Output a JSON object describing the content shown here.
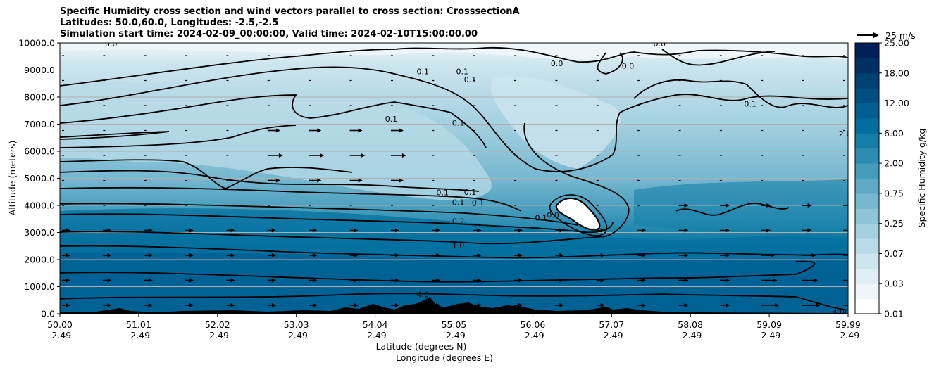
{
  "title": {
    "line1": "Specific Humidity cross section and wind vectors parallel to cross section: CrosssectionA",
    "line2": "Latitudes: 50.0,60.0, Longitudes: -2.5,-2.5",
    "line3": "Simulation start time: 2024-02-09_00:00:00, Valid time: 2024-02-10T15:00:00.00"
  },
  "chart_data": {
    "type": "heatmap",
    "xlabel": "Latitude (degrees N)",
    "xlabel2": "Longitude (degrees E)",
    "ylabel": "Altitude (meters)",
    "ylim": [
      0,
      10000
    ],
    "y_ticks": [
      "0.0",
      "1000.0",
      "2000.0",
      "3000.0",
      "4000.0",
      "5000.0",
      "6000.0",
      "7000.0",
      "8000.0",
      "9000.0",
      "10000.0"
    ],
    "x_ticks_lat": [
      "50.00",
      "51.01",
      "52.02",
      "53.03",
      "54.04",
      "55.05",
      "56.06",
      "57.07",
      "58.08",
      "59.09",
      "59.99"
    ],
    "x_ticks_lon": [
      "-2.49",
      "-2.49",
      "-2.49",
      "-2.49",
      "-2.49",
      "-2.49",
      "-2.49",
      "-2.49",
      "-2.49",
      "-2.49",
      "-2.49"
    ],
    "xlim": [
      50.0,
      59.99
    ],
    "grid": "horizontal",
    "colorbar": {
      "label": "Specific Humidity g/kg",
      "ticks": [
        "0.01",
        "0.03",
        "0.07",
        "0.25",
        "0.75",
        "2.00",
        "6.00",
        "12.00",
        "18.00",
        "25.00"
      ],
      "colors": [
        "#ffffff",
        "#eef6f9",
        "#deeef4",
        "#cde5ee",
        "#b9dbe7",
        "#a4d0e0",
        "#8dc4d8",
        "#76b8d0",
        "#5eaac6",
        "#469cbc",
        "#2c8db2",
        "#137ea8",
        "#006e9e",
        "#005f91",
        "#004f82",
        "#003f72",
        "#002f63",
        "#00205a"
      ]
    },
    "quiver_key": "25 m/s",
    "contour_labels": [
      {
        "text": "0.0",
        "lat": 50.65,
        "alt": 9980
      },
      {
        "text": "0.0",
        "lat": 57.6,
        "alt": 9980
      },
      {
        "text": "0.0",
        "lat": 56.3,
        "alt": 9250
      },
      {
        "text": "0.0",
        "lat": 57.2,
        "alt": 9150
      },
      {
        "text": "0.1",
        "lat": 54.6,
        "alt": 8950
      },
      {
        "text": "0.1",
        "lat": 55.1,
        "alt": 8950
      },
      {
        "text": "0.1",
        "lat": 55.2,
        "alt": 8650
      },
      {
        "text": "0.1",
        "lat": 54.2,
        "alt": 7200
      },
      {
        "text": "0.1",
        "lat": 55.05,
        "alt": 7050
      },
      {
        "text": "0.1",
        "lat": 58.75,
        "alt": 7750
      },
      {
        "text": "2.0",
        "lat": 59.95,
        "alt": 6650
      },
      {
        "text": "0.1",
        "lat": 54.85,
        "alt": 4480
      },
      {
        "text": "0.1",
        "lat": 55.2,
        "alt": 4500
      },
      {
        "text": "0.1",
        "lat": 55.05,
        "alt": 4120
      },
      {
        "text": "0.1",
        "lat": 55.3,
        "alt": 4100
      },
      {
        "text": "0.0",
        "lat": 56.25,
        "alt": 3650
      },
      {
        "text": "0.1",
        "lat": 56.1,
        "alt": 3550
      },
      {
        "text": "0.2",
        "lat": 55.05,
        "alt": 3420
      },
      {
        "text": "1.0",
        "lat": 55.05,
        "alt": 2520
      },
      {
        "text": "4.0",
        "lat": 54.6,
        "alt": 720
      },
      {
        "text": "4.00",
        "lat": 59.9,
        "alt": 70
      }
    ]
  }
}
